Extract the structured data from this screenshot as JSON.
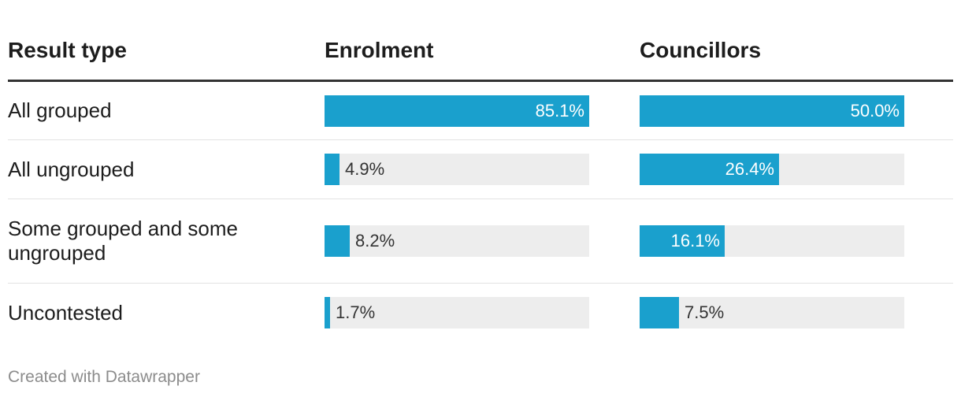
{
  "table": {
    "headers": [
      "Result type",
      "Enrolment",
      "Councillors"
    ]
  },
  "chart_data": {
    "type": "table",
    "columns": [
      "Result type",
      "Enrolment",
      "Councillors"
    ],
    "rows": [
      {
        "label": "All grouped",
        "enrolment": 85.1,
        "enrolment_label": "85.1%",
        "councillors": 50.0,
        "councillors_label": "50.0%"
      },
      {
        "label": "All ungrouped",
        "enrolment": 4.9,
        "enrolment_label": "4.9%",
        "councillors": 26.4,
        "councillors_label": "26.4%"
      },
      {
        "label": "Some grouped and some ungrouped",
        "enrolment": 8.2,
        "enrolment_label": "8.2%",
        "councillors": 16.1,
        "councillors_label": "16.1%"
      },
      {
        "label": "Uncontested",
        "enrolment": 1.7,
        "enrolment_label": "1.7%",
        "councillors": 7.5,
        "councillors_label": "7.5%"
      }
    ],
    "column_scale_max": {
      "enrolment": 85.1,
      "councillors": 50.0
    },
    "bar_color": "#1aa0cd",
    "bar_background_color": "#ededed"
  },
  "footer": {
    "credit": "Created with Datawrapper"
  }
}
